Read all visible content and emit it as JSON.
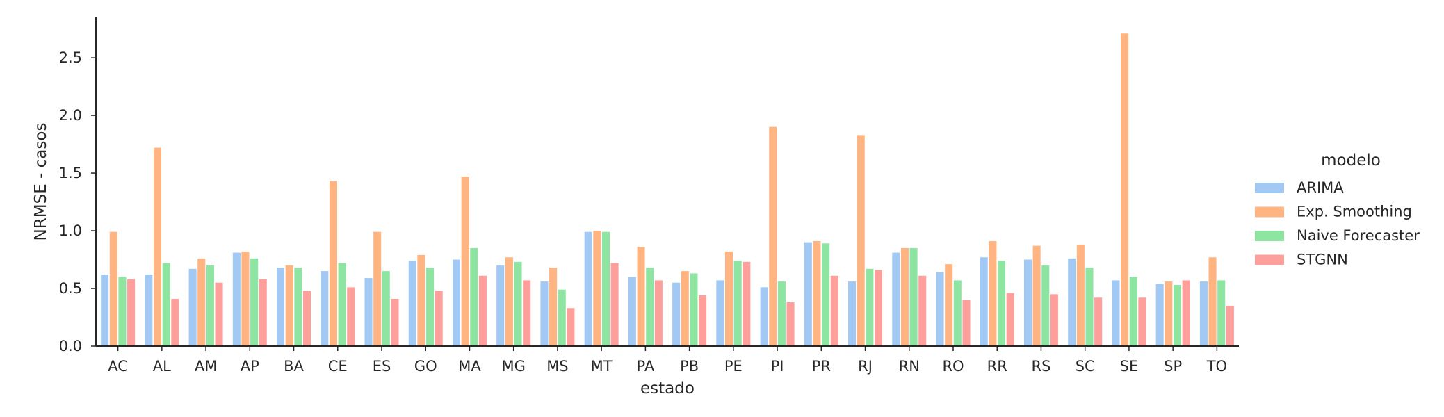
{
  "chart_data": {
    "type": "bar",
    "xlabel": "estado",
    "ylabel": "NRMSE - casos",
    "ylim": [
      0,
      2.85
    ],
    "yticks": [
      0.0,
      0.5,
      1.0,
      1.5,
      2.0,
      2.5
    ],
    "ytick_labels": [
      "0.0",
      "0.5",
      "1.0",
      "1.5",
      "2.0",
      "2.5"
    ],
    "grid": false,
    "legend_title": "modelo",
    "legend_position": "right",
    "categories": [
      "AC",
      "AL",
      "AM",
      "AP",
      "BA",
      "CE",
      "ES",
      "GO",
      "MA",
      "MG",
      "MS",
      "MT",
      "PA",
      "PB",
      "PE",
      "PI",
      "PR",
      "RJ",
      "RN",
      "RO",
      "RR",
      "RS",
      "SC",
      "SE",
      "SP",
      "TO"
    ],
    "series": [
      {
        "name": "ARIMA",
        "color": "#a1c9f4",
        "values": [
          0.62,
          0.62,
          0.67,
          0.81,
          0.68,
          0.65,
          0.59,
          0.74,
          0.75,
          0.7,
          0.56,
          0.99,
          0.6,
          0.55,
          0.57,
          0.51,
          0.9,
          0.56,
          0.81,
          0.64,
          0.77,
          0.75,
          0.76,
          0.57,
          0.54,
          0.56
        ]
      },
      {
        "name": "Exp. Smoothing",
        "color": "#ffb482",
        "values": [
          0.99,
          1.72,
          0.76,
          0.82,
          0.7,
          1.43,
          0.99,
          0.79,
          1.47,
          0.77,
          0.68,
          1.0,
          0.86,
          0.65,
          0.82,
          1.9,
          0.91,
          1.83,
          0.85,
          0.71,
          0.91,
          0.87,
          0.88,
          2.71,
          0.56,
          0.77
        ]
      },
      {
        "name": "Naive Forecaster",
        "color": "#8de5a1",
        "values": [
          0.6,
          0.72,
          0.7,
          0.76,
          0.68,
          0.72,
          0.65,
          0.68,
          0.85,
          0.73,
          0.49,
          0.99,
          0.68,
          0.63,
          0.74,
          0.56,
          0.89,
          0.67,
          0.85,
          0.57,
          0.74,
          0.7,
          0.68,
          0.6,
          0.53,
          0.57
        ]
      },
      {
        "name": "STGNN",
        "color": "#ff9f9b",
        "values": [
          0.58,
          0.41,
          0.55,
          0.58,
          0.48,
          0.51,
          0.41,
          0.48,
          0.61,
          0.57,
          0.33,
          0.72,
          0.57,
          0.44,
          0.73,
          0.38,
          0.61,
          0.66,
          0.61,
          0.4,
          0.46,
          0.45,
          0.42,
          0.42,
          0.57,
          0.35
        ]
      }
    ]
  }
}
